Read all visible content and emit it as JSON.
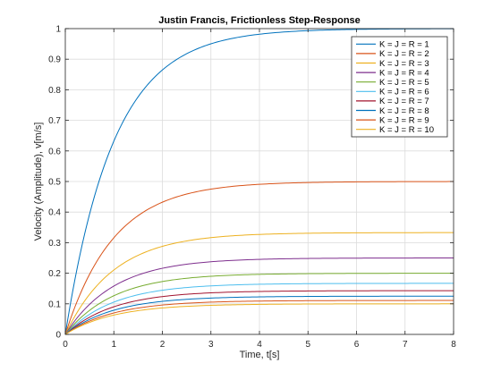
{
  "chart_data": {
    "type": "line",
    "title": "Justin Francis, Frictionless Step-Response",
    "xlabel": "Time, t[s]",
    "ylabel": "Velocity (Amplitude), v[m/s]",
    "xlim": [
      0,
      8
    ],
    "ylim": [
      0,
      1
    ],
    "xticks": [
      0,
      1,
      2,
      3,
      4,
      5,
      6,
      7,
      8
    ],
    "yticks": [
      0,
      0.1,
      0.2,
      0.3,
      0.4,
      0.5,
      0.6,
      0.7,
      0.8,
      0.9,
      1
    ],
    "xtick_labels": [
      "0",
      "1",
      "2",
      "3",
      "4",
      "5",
      "6",
      "7",
      "8"
    ],
    "ytick_labels": [
      "0",
      "0.1",
      "0.2",
      "0.3",
      "0.4",
      "0.5",
      "0.6",
      "0.7",
      "0.8",
      "0.9",
      "1"
    ],
    "grid": true,
    "legend_position": "top-right",
    "x": [
      0,
      0.25,
      0.5,
      0.75,
      1,
      1.5,
      2,
      2.5,
      3,
      3.5,
      4,
      5,
      6,
      7,
      8
    ],
    "series": [
      {
        "name": "K = J = R = 1",
        "color": "#0072BD",
        "final": 1.0,
        "values": [
          0,
          0.221,
          0.393,
          0.528,
          0.632,
          0.777,
          0.865,
          0.918,
          0.95,
          0.97,
          0.982,
          0.993,
          0.998,
          0.999,
          1.0
        ]
      },
      {
        "name": "K = J = R = 2",
        "color": "#D95319",
        "final": 0.5,
        "values": [
          0,
          0.111,
          0.197,
          0.264,
          0.316,
          0.388,
          0.432,
          0.459,
          0.475,
          0.485,
          0.491,
          0.497,
          0.499,
          0.5,
          0.5
        ]
      },
      {
        "name": "K = J = R = 3",
        "color": "#EDB120",
        "final": 0.333,
        "values": [
          0,
          0.074,
          0.131,
          0.176,
          0.211,
          0.259,
          0.288,
          0.306,
          0.317,
          0.323,
          0.327,
          0.331,
          0.332,
          0.333,
          0.333
        ]
      },
      {
        "name": "K = J = R = 4",
        "color": "#7E2F8E",
        "final": 0.25,
        "values": [
          0,
          0.055,
          0.098,
          0.132,
          0.158,
          0.194,
          0.216,
          0.229,
          0.238,
          0.242,
          0.245,
          0.248,
          0.249,
          0.25,
          0.25
        ]
      },
      {
        "name": "K = J = R = 5",
        "color": "#77AC30",
        "final": 0.2,
        "values": [
          0,
          0.044,
          0.079,
          0.106,
          0.126,
          0.155,
          0.173,
          0.184,
          0.19,
          0.194,
          0.196,
          0.199,
          0.2,
          0.2,
          0.2
        ]
      },
      {
        "name": "K = J = R = 6",
        "color": "#4DBEEE",
        "final": 0.167,
        "values": [
          0,
          0.037,
          0.066,
          0.088,
          0.105,
          0.13,
          0.144,
          0.153,
          0.158,
          0.162,
          0.164,
          0.166,
          0.166,
          0.167,
          0.167
        ]
      },
      {
        "name": "K = J = R = 7",
        "color": "#A2142F",
        "final": 0.143,
        "values": [
          0,
          0.032,
          0.056,
          0.075,
          0.09,
          0.111,
          0.124,
          0.131,
          0.136,
          0.139,
          0.14,
          0.142,
          0.143,
          0.143,
          0.143
        ]
      },
      {
        "name": "K = J = R = 8",
        "color": "#0072BD",
        "final": 0.125,
        "values": [
          0,
          0.028,
          0.049,
          0.066,
          0.079,
          0.097,
          0.108,
          0.115,
          0.119,
          0.121,
          0.123,
          0.124,
          0.125,
          0.125,
          0.125
        ]
      },
      {
        "name": "K = J = R = 9",
        "color": "#D95319",
        "final": 0.111,
        "values": [
          0,
          0.025,
          0.044,
          0.059,
          0.07,
          0.086,
          0.096,
          0.102,
          0.106,
          0.108,
          0.109,
          0.11,
          0.111,
          0.111,
          0.111
        ]
      },
      {
        "name": "K = J = R = 10",
        "color": "#EDB120",
        "final": 0.1,
        "values": [
          0,
          0.022,
          0.039,
          0.053,
          0.063,
          0.078,
          0.086,
          0.092,
          0.095,
          0.097,
          0.098,
          0.099,
          0.1,
          0.1,
          0.1
        ]
      }
    ]
  }
}
